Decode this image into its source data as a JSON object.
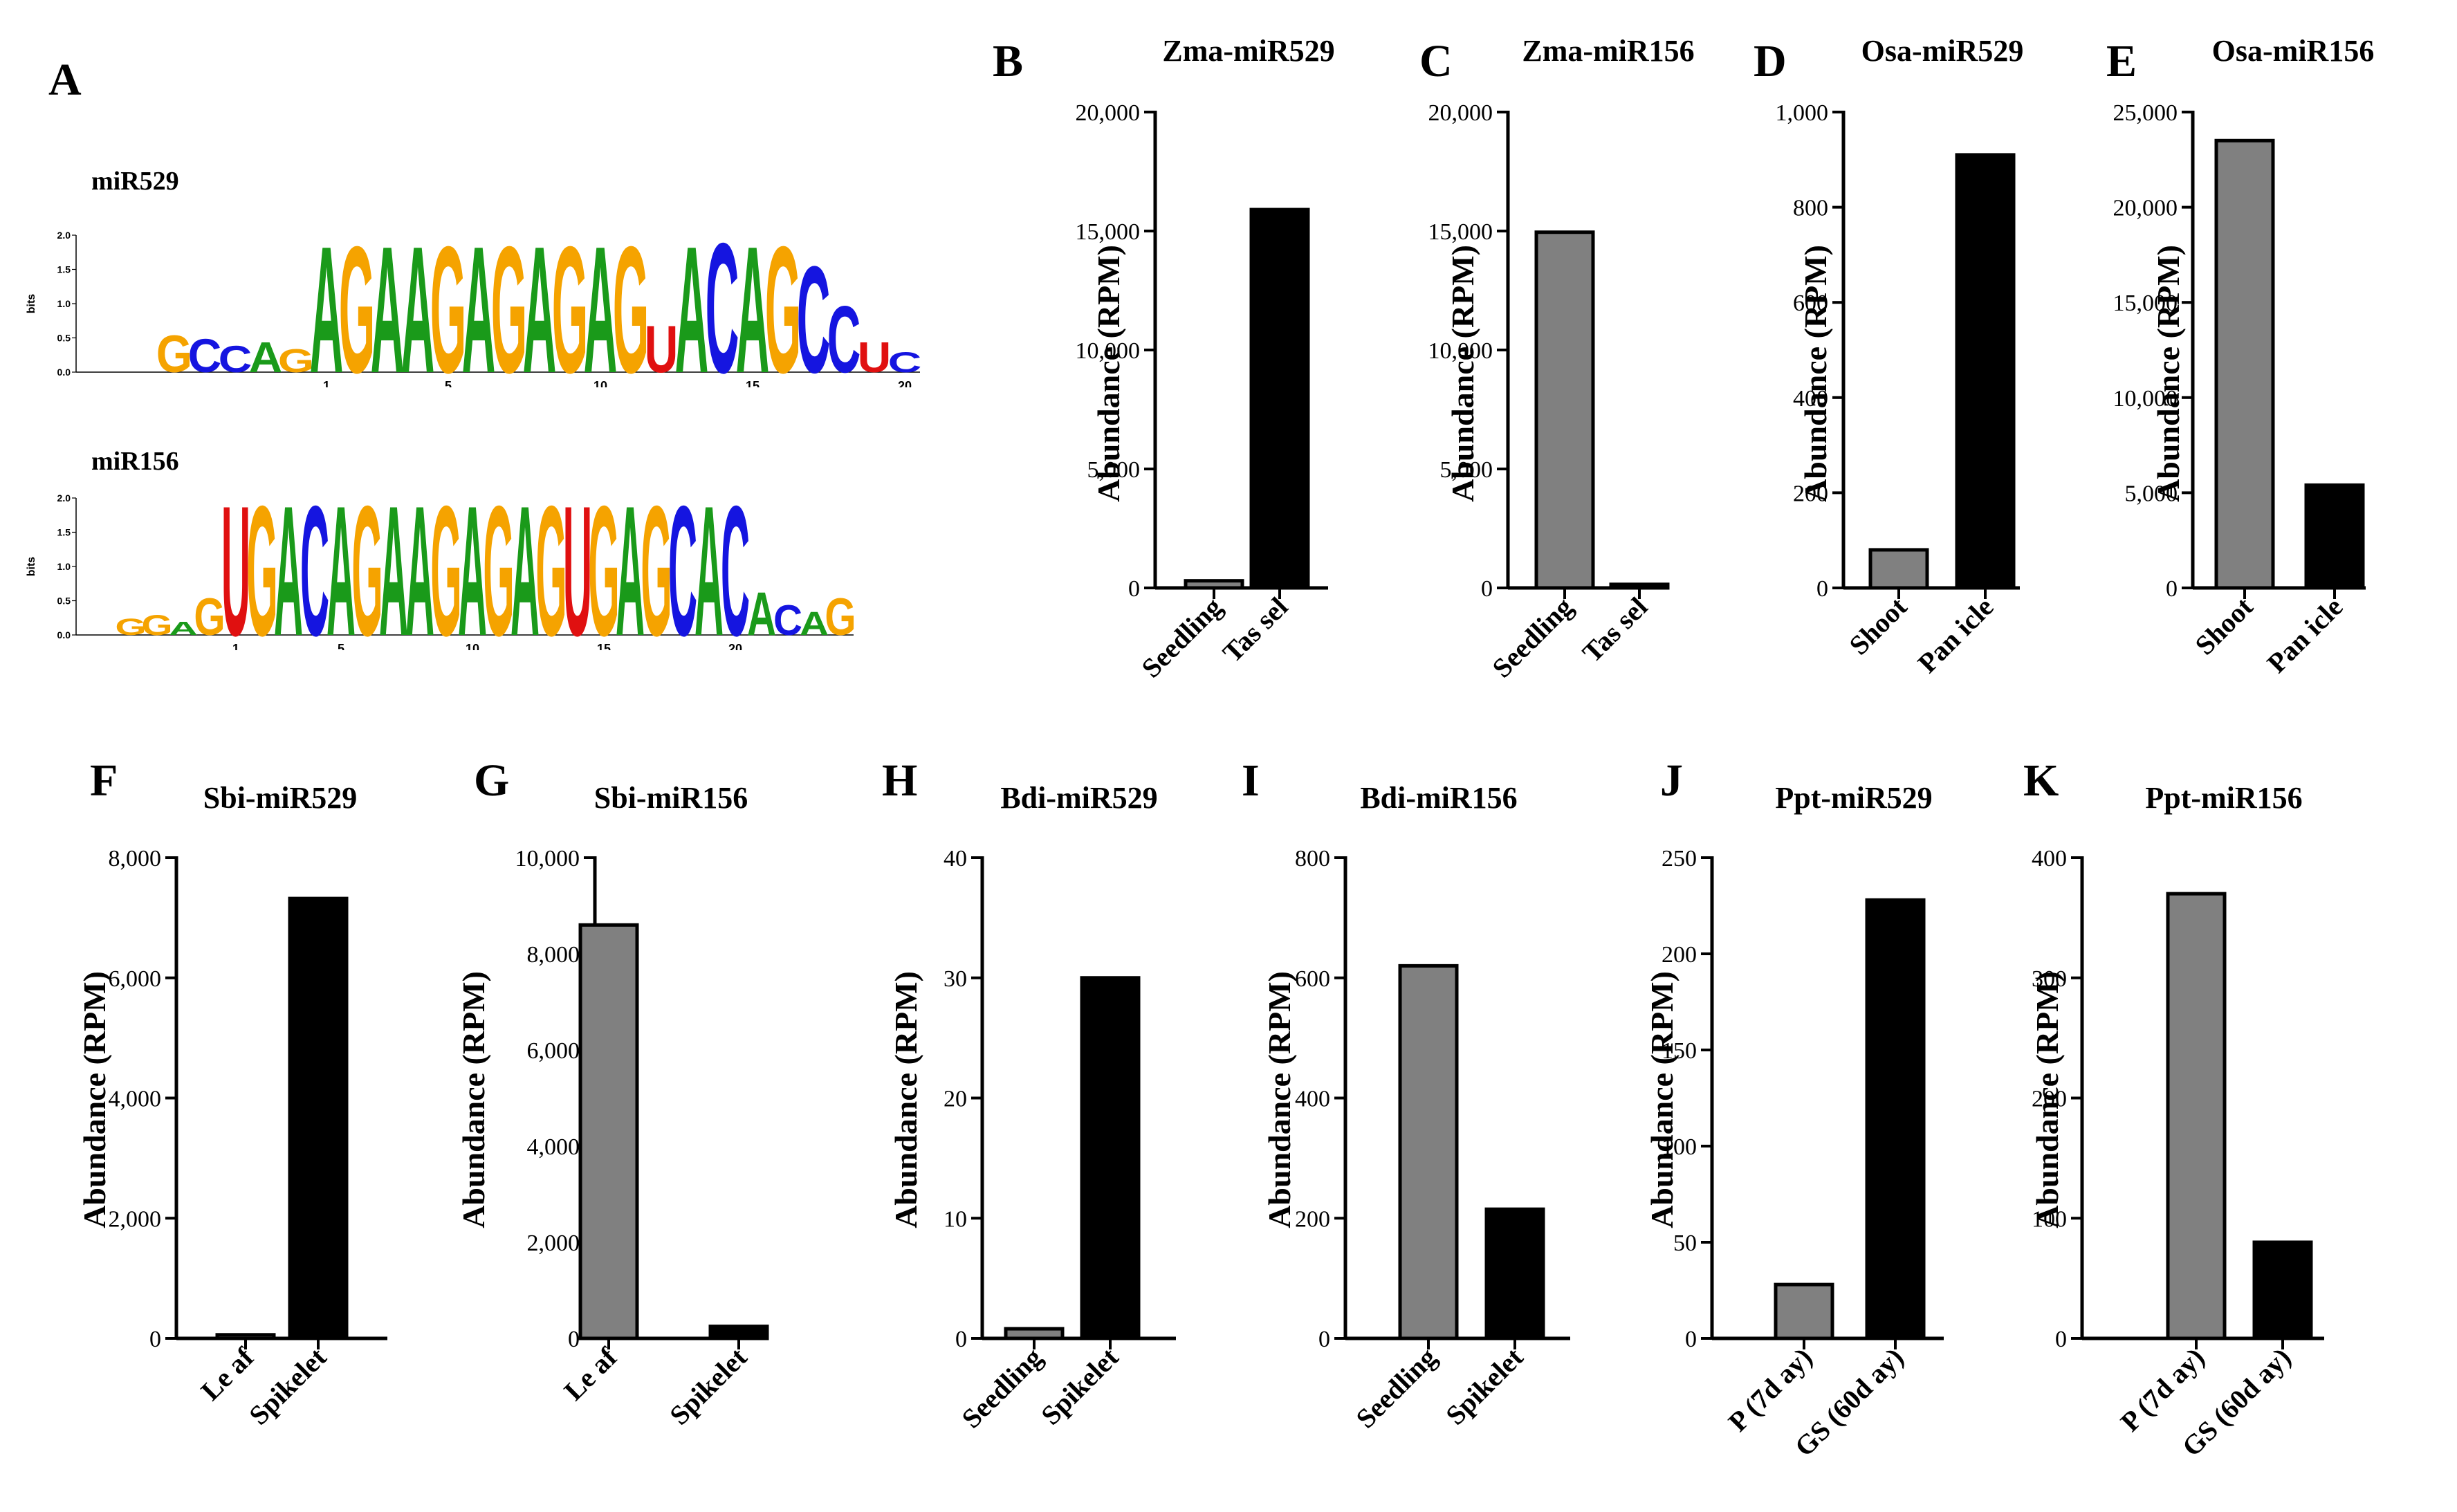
{
  "panel_a": {
    "letter": "A",
    "logos": [
      {
        "name": "miR529",
        "axis_label": "bits",
        "y_ticks": [
          "2.0",
          "1.5",
          "1.0",
          "0.5",
          "0.0"
        ],
        "x_ticks": [
          "1",
          "5",
          "10",
          "15",
          "20"
        ],
        "sequence": [
          "G",
          "C",
          "C",
          "A",
          "G",
          "A",
          "G",
          "A",
          "A",
          "G",
          "A",
          "G",
          "A",
          "G",
          "A",
          "G",
          "U",
          "A",
          "C",
          "A",
          "G",
          "C",
          "C",
          "U",
          "C"
        ],
        "heights": [
          0.55,
          0.5,
          0.4,
          0.45,
          0.35,
          1.9,
          1.9,
          1.9,
          1.9,
          1.9,
          1.9,
          1.9,
          1.9,
          1.9,
          1.9,
          1.9,
          0.7,
          1.9,
          1.95,
          1.9,
          1.9,
          1.6,
          1.0,
          0.45,
          0.3
        ]
      },
      {
        "name": "miR156",
        "axis_label": "bits",
        "y_ticks": [
          "2.0",
          "1.5",
          "1.0",
          "0.5",
          "0.0"
        ],
        "x_ticks": [
          "1",
          "5",
          "10",
          "15",
          "20"
        ],
        "sequence": [
          "G",
          "G",
          "A",
          "G",
          "U",
          "G",
          "A",
          "C",
          "A",
          "G",
          "A",
          "A",
          "G",
          "A",
          "G",
          "A",
          "G",
          "U",
          "G",
          "A",
          "G",
          "C",
          "A",
          "C",
          "A",
          "C",
          "A",
          "G"
        ],
        "heights": [
          0.25,
          0.3,
          0.2,
          0.55,
          1.95,
          1.95,
          1.95,
          1.95,
          1.95,
          1.95,
          1.95,
          1.95,
          1.95,
          1.95,
          1.95,
          1.95,
          1.95,
          1.95,
          1.95,
          1.95,
          1.95,
          1.95,
          1.95,
          1.95,
          0.65,
          0.45,
          0.35,
          0.55
        ]
      }
    ]
  },
  "chart_data": [
    {
      "id": "B",
      "type": "bar",
      "title": "Zma-miR529",
      "ylabel": "Abundance (RPM)",
      "categories": [
        "Seedling",
        "Tassel"
      ],
      "category_labels": [
        "Seedling",
        "Tas sel"
      ],
      "values": [
        300,
        15900
      ],
      "ylim": [
        0,
        20000
      ],
      "yticks": [
        0,
        5000,
        10000,
        15000,
        20000
      ],
      "ytick_labels": [
        "0",
        "5,000",
        "10,000",
        "15,000",
        "20,000"
      ],
      "colors": [
        "#808080",
        "#000000"
      ]
    },
    {
      "id": "C",
      "type": "bar",
      "title": "Zma-miR156",
      "ylabel": "Abundance (RPM)",
      "categories": [
        "Seedling",
        "Tassel"
      ],
      "category_labels": [
        "Seedling",
        "Tas sel"
      ],
      "values": [
        14950,
        150
      ],
      "ylim": [
        0,
        20000
      ],
      "yticks": [
        0,
        5000,
        10000,
        15000,
        20000
      ],
      "ytick_labels": [
        "0",
        "5,000",
        "10,000",
        "15,000",
        "20,000"
      ],
      "colors": [
        "#808080",
        "#000000"
      ]
    },
    {
      "id": "D",
      "type": "bar",
      "title": "Osa-miR529",
      "ylabel": "Abundance (RPM)",
      "categories": [
        "Shoot",
        "Panicle"
      ],
      "category_labels": [
        "Shoot",
        "Pan icle"
      ],
      "values": [
        80,
        910
      ],
      "ylim": [
        0,
        1000
      ],
      "yticks": [
        0,
        200,
        400,
        600,
        800,
        1000
      ],
      "ytick_labels": [
        "0",
        "200",
        "400",
        "600",
        "800",
        "1,000"
      ],
      "colors": [
        "#808080",
        "#000000"
      ]
    },
    {
      "id": "E",
      "type": "bar",
      "title": "Osa-miR156",
      "ylabel": "Abundance (RPM)",
      "categories": [
        "Shoot",
        "Panicle"
      ],
      "category_labels": [
        "Shoot",
        "Pan icle"
      ],
      "values": [
        23500,
        5400
      ],
      "ylim": [
        0,
        25000
      ],
      "yticks": [
        0,
        5000,
        10000,
        15000,
        20000,
        25000
      ],
      "ytick_labels": [
        "0",
        "5,000",
        "10,000",
        "15,000",
        "20,000",
        "25,000"
      ],
      "colors": [
        "#808080",
        "#000000"
      ]
    },
    {
      "id": "F",
      "type": "bar",
      "title": "Sbi-miR529",
      "ylabel": "Abundance (RPM)",
      "categories": [
        "Leaf",
        "Spikelet"
      ],
      "category_labels": [
        "Le af",
        "Spikelet"
      ],
      "values": [
        60,
        7320
      ],
      "ylim": [
        0,
        8000
      ],
      "yticks": [
        0,
        2000,
        4000,
        6000,
        8000
      ],
      "ytick_labels": [
        "0",
        "2,000",
        "4,000",
        "6,000",
        "8,000"
      ],
      "colors": [
        "#808080",
        "#000000"
      ]
    },
    {
      "id": "G",
      "type": "bar",
      "title": "Sbi-miR156",
      "ylabel": "Abundance (RPM)",
      "categories": [
        "Leaf",
        "Spikelet"
      ],
      "category_labels": [
        "Le af",
        "Spikelet"
      ],
      "values": [
        8600,
        250
      ],
      "ylim": [
        0,
        10000
      ],
      "yticks": [
        0,
        2000,
        4000,
        6000,
        8000,
        10000
      ],
      "ytick_labels": [
        "0",
        "2,000",
        "4,000",
        "6,000",
        "8,000",
        "10,000"
      ],
      "colors": [
        "#808080",
        "#000000"
      ]
    },
    {
      "id": "H",
      "type": "bar",
      "title": "Bdi-miR529",
      "ylabel": "Abundance (RPM)",
      "categories": [
        "Seedling",
        "Spikelet"
      ],
      "category_labels": [
        "Seedling",
        "Spikelet"
      ],
      "values": [
        0.8,
        30
      ],
      "ylim": [
        0,
        40
      ],
      "yticks": [
        0,
        10,
        20,
        30,
        40
      ],
      "ytick_labels": [
        "0",
        "10",
        "20",
        "30",
        "40"
      ],
      "colors": [
        "#808080",
        "#000000"
      ]
    },
    {
      "id": "I",
      "type": "bar",
      "title": "Bdi-miR156",
      "ylabel": "Abundance (RPM)",
      "categories": [
        "Seedling",
        "Spikelet"
      ],
      "category_labels": [
        "Seedling",
        "Spikelet"
      ],
      "values": [
        620,
        215
      ],
      "ylim": [
        0,
        800
      ],
      "yticks": [
        0,
        200,
        400,
        600,
        800
      ],
      "ytick_labels": [
        "0",
        "200",
        "400",
        "600",
        "800"
      ],
      "colors": [
        "#808080",
        "#000000"
      ]
    },
    {
      "id": "J",
      "type": "bar",
      "title": "Ppt-miR529",
      "ylabel": "Abundance (RPM)",
      "categories": [
        "P (7day)",
        "GS (60day)"
      ],
      "category_labels": [
        "P (7d ay)",
        "GS (60d ay)"
      ],
      "values": [
        28,
        228
      ],
      "ylim": [
        0,
        250
      ],
      "yticks": [
        0,
        50,
        100,
        150,
        200,
        250
      ],
      "ytick_labels": [
        "0",
        "50",
        "100",
        "150",
        "200",
        "250"
      ],
      "colors": [
        "#808080",
        "#000000"
      ]
    },
    {
      "id": "K",
      "type": "bar",
      "title": "Ppt-miR156",
      "ylabel": "Abundance (RPM)",
      "categories": [
        "P (7day)",
        "GS (60day)"
      ],
      "category_labels": [
        "P (7d ay)",
        "GS (60d ay)"
      ],
      "values": [
        370,
        80
      ],
      "ylim": [
        0,
        400
      ],
      "yticks": [
        0,
        100,
        200,
        300,
        400
      ],
      "ytick_labels": [
        "0",
        "100",
        "200",
        "300",
        "400"
      ],
      "colors": [
        "#808080",
        "#000000"
      ]
    }
  ]
}
